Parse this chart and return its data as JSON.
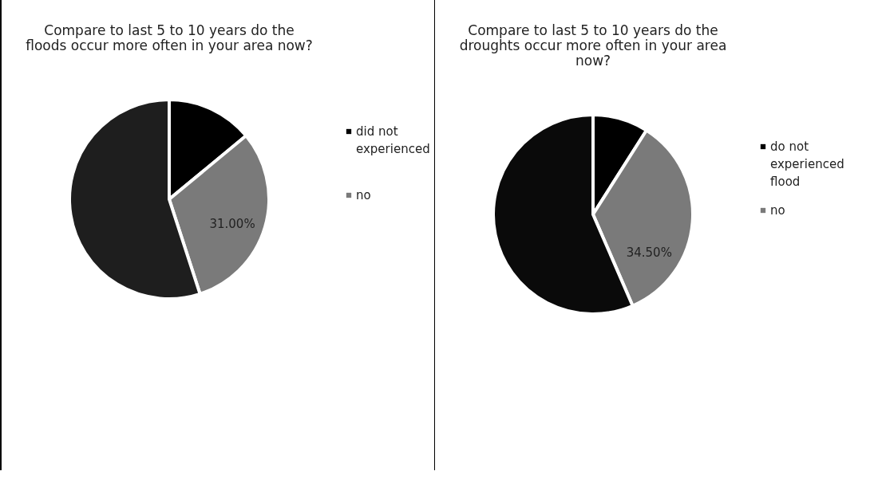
{
  "chart_data": [
    {
      "type": "pie",
      "title": "Compare to last 5 to 10 years do the floods occur more often in your area now?",
      "categories": [
        "did not experienced",
        "no",
        null
      ],
      "values": [
        14,
        31,
        55
      ],
      "value_labels": [
        null,
        "31.00%",
        null
      ],
      "colors": [
        "#000000",
        "#7a7a7a",
        "#1e1e1e"
      ],
      "legend": "right"
    },
    {
      "type": "pie",
      "title": "Compare to last 5 to 10 years do the droughts occur more often in your area now?",
      "categories": [
        "do not experienced flood",
        "no",
        null
      ],
      "values": [
        9,
        34.5,
        56.5
      ],
      "value_labels": [
        null,
        "34.50%",
        null
      ],
      "colors": [
        "#000000",
        "#7a7a7a",
        "#0a0a0a"
      ],
      "legend": "right"
    }
  ]
}
